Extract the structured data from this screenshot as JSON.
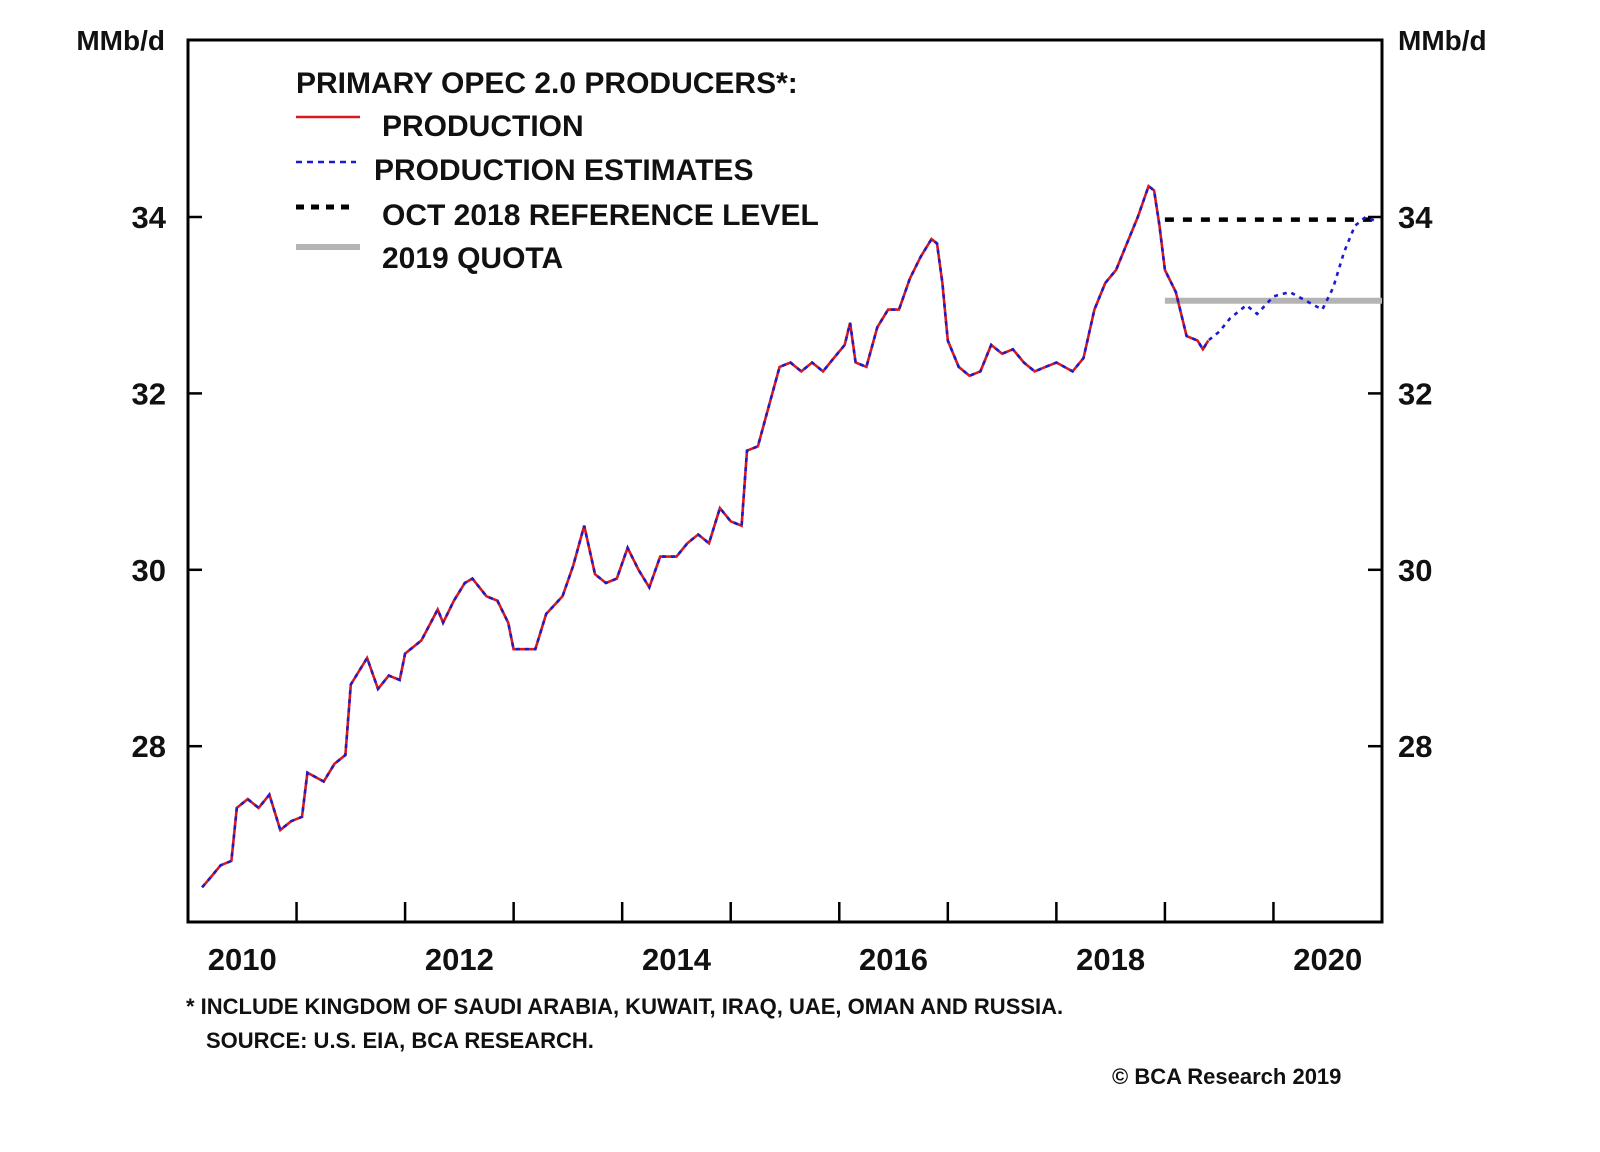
{
  "chart_data": {
    "type": "line",
    "title": "",
    "xlabel": "",
    "ylabel_left": "MMb/d",
    "ylabel_right": "MMb/d",
    "xlim": [
      2010.0,
      2021.0
    ],
    "ylim": [
      26.0,
      36.0
    ],
    "yticks": [
      28,
      30,
      32,
      34
    ],
    "ytick_labels": [
      "28",
      "30",
      "32",
      "34"
    ],
    "xticks_minor": [
      2011,
      2012,
      2013,
      2014,
      2015,
      2016,
      2017,
      2018,
      2019,
      2020
    ],
    "xtick_labels": [
      {
        "label": "2010",
        "at": 2010.5
      },
      {
        "label": "2012",
        "at": 2012.5
      },
      {
        "label": "2014",
        "at": 2014.5
      },
      {
        "label": "2016",
        "at": 2016.5
      },
      {
        "label": "2018",
        "at": 2018.5
      },
      {
        "label": "2020",
        "at": 2020.5
      }
    ],
    "grid": false,
    "legend": {
      "placement": "top-left",
      "title": "PRIMARY OPEC 2.0 PRODUCERS*:",
      "entries": [
        {
          "label": "PRODUCTION",
          "style": "solid",
          "color": "#d7191c"
        },
        {
          "label": "PRODUCTION ESTIMATES",
          "style": "dashed",
          "color": "#1a1ad0"
        },
        {
          "label": "OCT 2018 REFERENCE LEVEL",
          "style": "dotted-thick",
          "color": "#000000"
        },
        {
          "label": "2019 QUOTA",
          "style": "solid-thick",
          "color": "#b4b4b4"
        }
      ]
    },
    "series": [
      {
        "name": "PRODUCTION",
        "color": "#d7191c",
        "x": [
          2010.13,
          2010.2,
          2010.3,
          2010.4,
          2010.45,
          2010.55,
          2010.65,
          2010.75,
          2010.85,
          2010.95,
          2011.05,
          2011.1,
          2011.25,
          2011.35,
          2011.45,
          2011.5,
          2011.65,
          2011.75,
          2011.85,
          2011.95,
          2012.0,
          2012.15,
          2012.3,
          2012.35,
          2012.45,
          2012.55,
          2012.62,
          2012.75,
          2012.85,
          2012.95,
          2013.0,
          2013.2,
          2013.3,
          2013.45,
          2013.55,
          2013.65,
          2013.75,
          2013.85,
          2013.95,
          2014.05,
          2014.15,
          2014.25,
          2014.35,
          2014.5,
          2014.6,
          2014.7,
          2014.8,
          2014.9,
          2015.0,
          2015.1,
          2015.15,
          2015.25,
          2015.35,
          2015.45,
          2015.55,
          2015.65,
          2015.75,
          2015.85,
          2015.95,
          2016.05,
          2016.1,
          2016.15,
          2016.25,
          2016.35,
          2016.45,
          2016.55,
          2016.65,
          2016.75,
          2016.85,
          2016.9,
          2016.95,
          2017.0,
          2017.1,
          2017.2,
          2017.3,
          2017.4,
          2017.5,
          2017.6,
          2017.7,
          2017.8,
          2017.9,
          2018.0,
          2018.15,
          2018.25,
          2018.35,
          2018.45,
          2018.55,
          2018.65,
          2018.75,
          2018.85,
          2018.9,
          2018.95,
          2019.0,
          2019.1,
          2019.2,
          2019.3,
          2019.35,
          2019.4
        ],
        "values": [
          26.4,
          26.5,
          26.65,
          26.7,
          27.3,
          27.4,
          27.3,
          27.45,
          27.05,
          27.15,
          27.2,
          27.7,
          27.6,
          27.8,
          27.9,
          28.7,
          29.0,
          28.65,
          28.8,
          28.75,
          29.05,
          29.2,
          29.55,
          29.4,
          29.65,
          29.85,
          29.9,
          29.7,
          29.65,
          29.4,
          29.1,
          29.1,
          29.5,
          29.7,
          30.05,
          30.5,
          29.95,
          29.85,
          29.9,
          30.25,
          30.0,
          29.8,
          30.15,
          30.15,
          30.3,
          30.4,
          30.3,
          30.7,
          30.55,
          30.5,
          31.35,
          31.4,
          31.85,
          32.3,
          32.35,
          32.25,
          32.35,
          32.25,
          32.4,
          32.55,
          32.8,
          32.35,
          32.3,
          32.75,
          32.95,
          32.95,
          33.3,
          33.55,
          33.75,
          33.7,
          33.25,
          32.6,
          32.3,
          32.2,
          32.25,
          32.55,
          32.45,
          32.5,
          32.35,
          32.25,
          32.3,
          32.35,
          32.25,
          32.4,
          32.95,
          33.25,
          33.4,
          33.7,
          34.0,
          34.35,
          34.3,
          33.9,
          33.4,
          33.15,
          32.65,
          32.6,
          32.5,
          32.6
        ]
      },
      {
        "name": "PRODUCTION ESTIMATES",
        "color": "#1a1ad0",
        "x": [
          2010.13,
          2010.2,
          2010.3,
          2010.4,
          2010.45,
          2010.55,
          2010.65,
          2010.75,
          2010.85,
          2010.95,
          2011.05,
          2011.1,
          2011.25,
          2011.35,
          2011.45,
          2011.5,
          2011.65,
          2011.75,
          2011.85,
          2011.95,
          2012.0,
          2012.15,
          2012.3,
          2012.35,
          2012.45,
          2012.55,
          2012.62,
          2012.75,
          2012.85,
          2012.95,
          2013.0,
          2013.2,
          2013.3,
          2013.45,
          2013.55,
          2013.65,
          2013.75,
          2013.85,
          2013.95,
          2014.05,
          2014.15,
          2014.25,
          2014.35,
          2014.5,
          2014.6,
          2014.7,
          2014.8,
          2014.9,
          2015.0,
          2015.1,
          2015.15,
          2015.25,
          2015.35,
          2015.45,
          2015.55,
          2015.65,
          2015.75,
          2015.85,
          2015.95,
          2016.05,
          2016.1,
          2016.15,
          2016.25,
          2016.35,
          2016.45,
          2016.55,
          2016.65,
          2016.75,
          2016.85,
          2016.9,
          2016.95,
          2017.0,
          2017.1,
          2017.2,
          2017.3,
          2017.4,
          2017.5,
          2017.6,
          2017.7,
          2017.8,
          2017.9,
          2018.0,
          2018.15,
          2018.25,
          2018.35,
          2018.45,
          2018.55,
          2018.65,
          2018.75,
          2018.85,
          2018.9,
          2018.95,
          2019.0,
          2019.1,
          2019.2,
          2019.3,
          2019.35,
          2019.4,
          2019.5,
          2019.6,
          2019.75,
          2019.85,
          2020.0,
          2020.15,
          2020.3,
          2020.45,
          2020.55,
          2020.65,
          2020.75,
          2020.85,
          2020.95
        ],
        "values": [
          26.4,
          26.5,
          26.65,
          26.7,
          27.3,
          27.4,
          27.3,
          27.45,
          27.05,
          27.15,
          27.2,
          27.7,
          27.6,
          27.8,
          27.9,
          28.7,
          29.0,
          28.65,
          28.8,
          28.75,
          29.05,
          29.2,
          29.55,
          29.4,
          29.65,
          29.85,
          29.9,
          29.7,
          29.65,
          29.4,
          29.1,
          29.1,
          29.5,
          29.7,
          30.05,
          30.5,
          29.95,
          29.85,
          29.9,
          30.25,
          30.0,
          29.8,
          30.15,
          30.15,
          30.3,
          30.4,
          30.3,
          30.7,
          30.55,
          30.5,
          31.35,
          31.4,
          31.85,
          32.3,
          32.35,
          32.25,
          32.35,
          32.25,
          32.4,
          32.55,
          32.8,
          32.35,
          32.3,
          32.75,
          32.95,
          32.95,
          33.3,
          33.55,
          33.75,
          33.7,
          33.25,
          32.6,
          32.3,
          32.2,
          32.25,
          32.55,
          32.45,
          32.5,
          32.35,
          32.25,
          32.3,
          32.35,
          32.25,
          32.4,
          32.95,
          33.25,
          33.4,
          33.7,
          34.0,
          34.35,
          34.3,
          33.9,
          33.4,
          33.15,
          32.65,
          32.6,
          32.5,
          32.6,
          32.7,
          32.85,
          33.0,
          32.9,
          33.1,
          33.15,
          33.05,
          32.95,
          33.2,
          33.6,
          33.9,
          34.0,
          33.95
        ]
      },
      {
        "name": "OCT 2018 REFERENCE LEVEL",
        "color": "#000000",
        "x": [
          2019.0,
          2021.0
        ],
        "values": [
          33.97,
          33.97
        ]
      },
      {
        "name": "2019 QUOTA",
        "color": "#b4b4b4",
        "x": [
          2019.0,
          2021.0
        ],
        "values": [
          33.05,
          33.05
        ]
      }
    ]
  },
  "footnote": "* INCLUDE KINGDOM OF SAUDI ARABIA, KUWAIT, IRAQ, UAE, OMAN AND RUSSIA.",
  "source": "SOURCE: U.S. EIA, BCA RESEARCH.",
  "copyright": "© BCA Research 2019"
}
